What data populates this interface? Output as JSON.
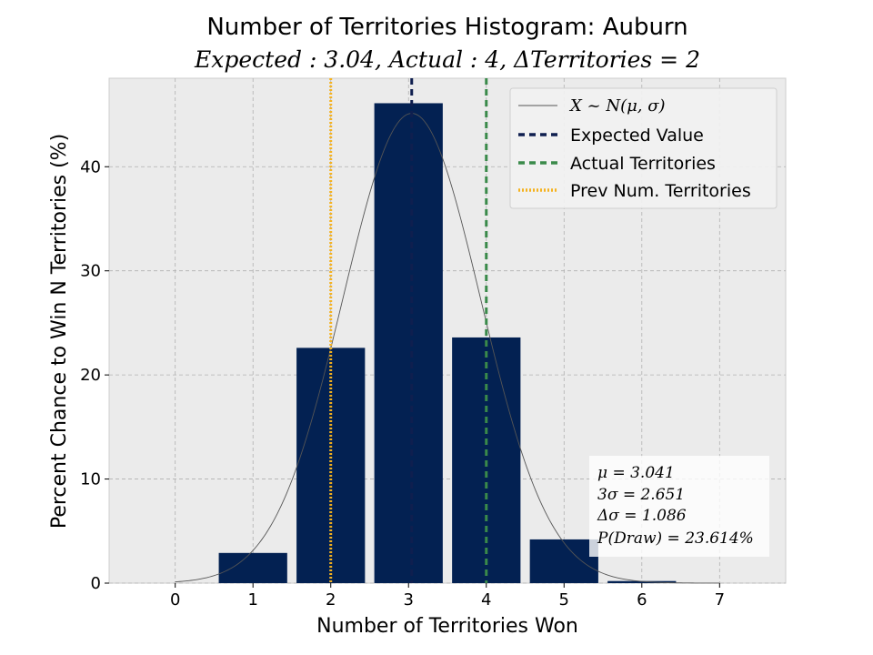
{
  "chart_data": {
    "type": "bar",
    "title": "Number of Territories Histogram: Auburn",
    "subtitle": "Expected : 3.04, Actual : 4, ΔTerritories = 2",
    "xlabel": "Number of Territories Won",
    "ylabel": "Percent Chance to Win N Territories (%)",
    "x_ticks": [
      0,
      1,
      2,
      3,
      4,
      5,
      6,
      7
    ],
    "y_ticks": [
      0,
      10,
      20,
      30,
      40
    ],
    "xlim": [
      -0.85,
      7.85
    ],
    "ylim": [
      0,
      48.5
    ],
    "grid": true,
    "categories": [
      0,
      1,
      2,
      3,
      4,
      5,
      6,
      7
    ],
    "values": [
      0,
      2.9,
      22.6,
      46.1,
      23.6,
      4.2,
      0.2,
      0
    ],
    "bar_color": "#032152",
    "normal_curve": {
      "mu": 3.041,
      "sigma": 0.884,
      "color": "#555555"
    },
    "vlines": [
      {
        "name": "Expected Value",
        "x": 3.041,
        "color": "#0f1f4f",
        "style": "dashed"
      },
      {
        "name": "Actual Territories",
        "x": 4,
        "color": "#3a8a4a",
        "style": "dashed"
      },
      {
        "name": "Prev Num. Territories",
        "x": 2,
        "color": "#f5b21f",
        "style": "dotted"
      }
    ],
    "legend": {
      "placement": "top-right",
      "entries": [
        {
          "label": "X ~ N(μ, σ)",
          "kind": "curve"
        },
        {
          "label": "Expected Value",
          "kind": "vline-expected"
        },
        {
          "label": "Actual Territories",
          "kind": "vline-actual"
        },
        {
          "label": "Prev Num. Territories",
          "kind": "vline-prev"
        }
      ]
    },
    "stats_box": {
      "placement": "bottom-right",
      "lines": [
        "μ = 3.041",
        "3σ = 2.651",
        "Δσ = 1.086",
        "P(Draw) = 23.614%"
      ]
    }
  }
}
